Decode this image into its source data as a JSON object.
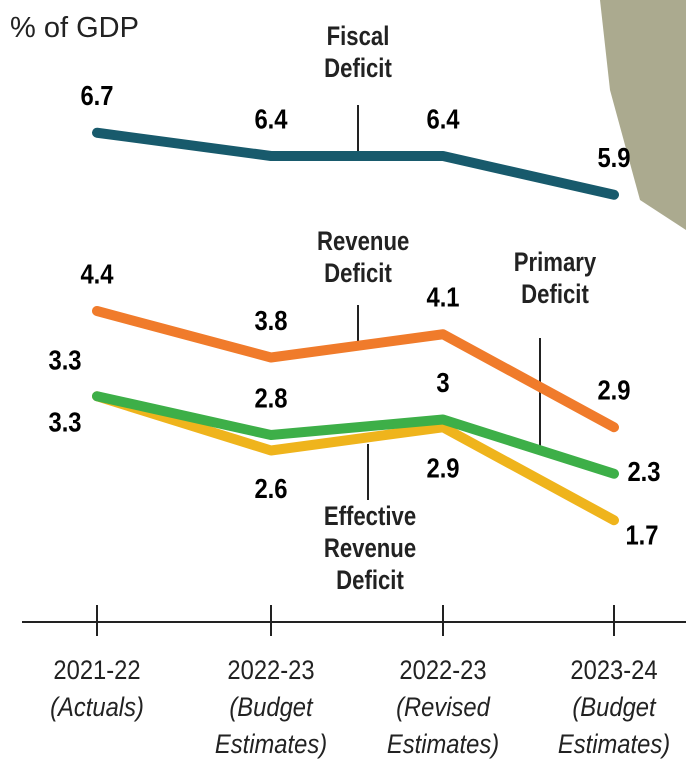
{
  "chart_data": {
    "type": "line",
    "title": "% of GDP",
    "categories": [
      "2021-22",
      "2022-23",
      "2022-23",
      "2023-24"
    ],
    "category_notes": [
      "(Actuals)",
      "(Budget Estimates)",
      "(Revised Estimates)",
      "(Budget Estimates)"
    ],
    "ylim": [
      0,
      8
    ],
    "series": [
      {
        "name": "Fiscal Deficit",
        "color": "#185a6c",
        "values": [
          6.7,
          6.4,
          6.4,
          5.9
        ]
      },
      {
        "name": "Revenue Deficit",
        "color": "#f07b2b",
        "values": [
          4.4,
          3.8,
          4.1,
          2.9
        ]
      },
      {
        "name": "Primary Deficit",
        "color": "#3daf48",
        "values": [
          3.3,
          2.8,
          3.0,
          2.3
        ]
      },
      {
        "name": "Effective Revenue Deficit",
        "color": "#efb41c",
        "values": [
          3.3,
          2.6,
          2.9,
          1.7
        ]
      }
    ]
  }
}
